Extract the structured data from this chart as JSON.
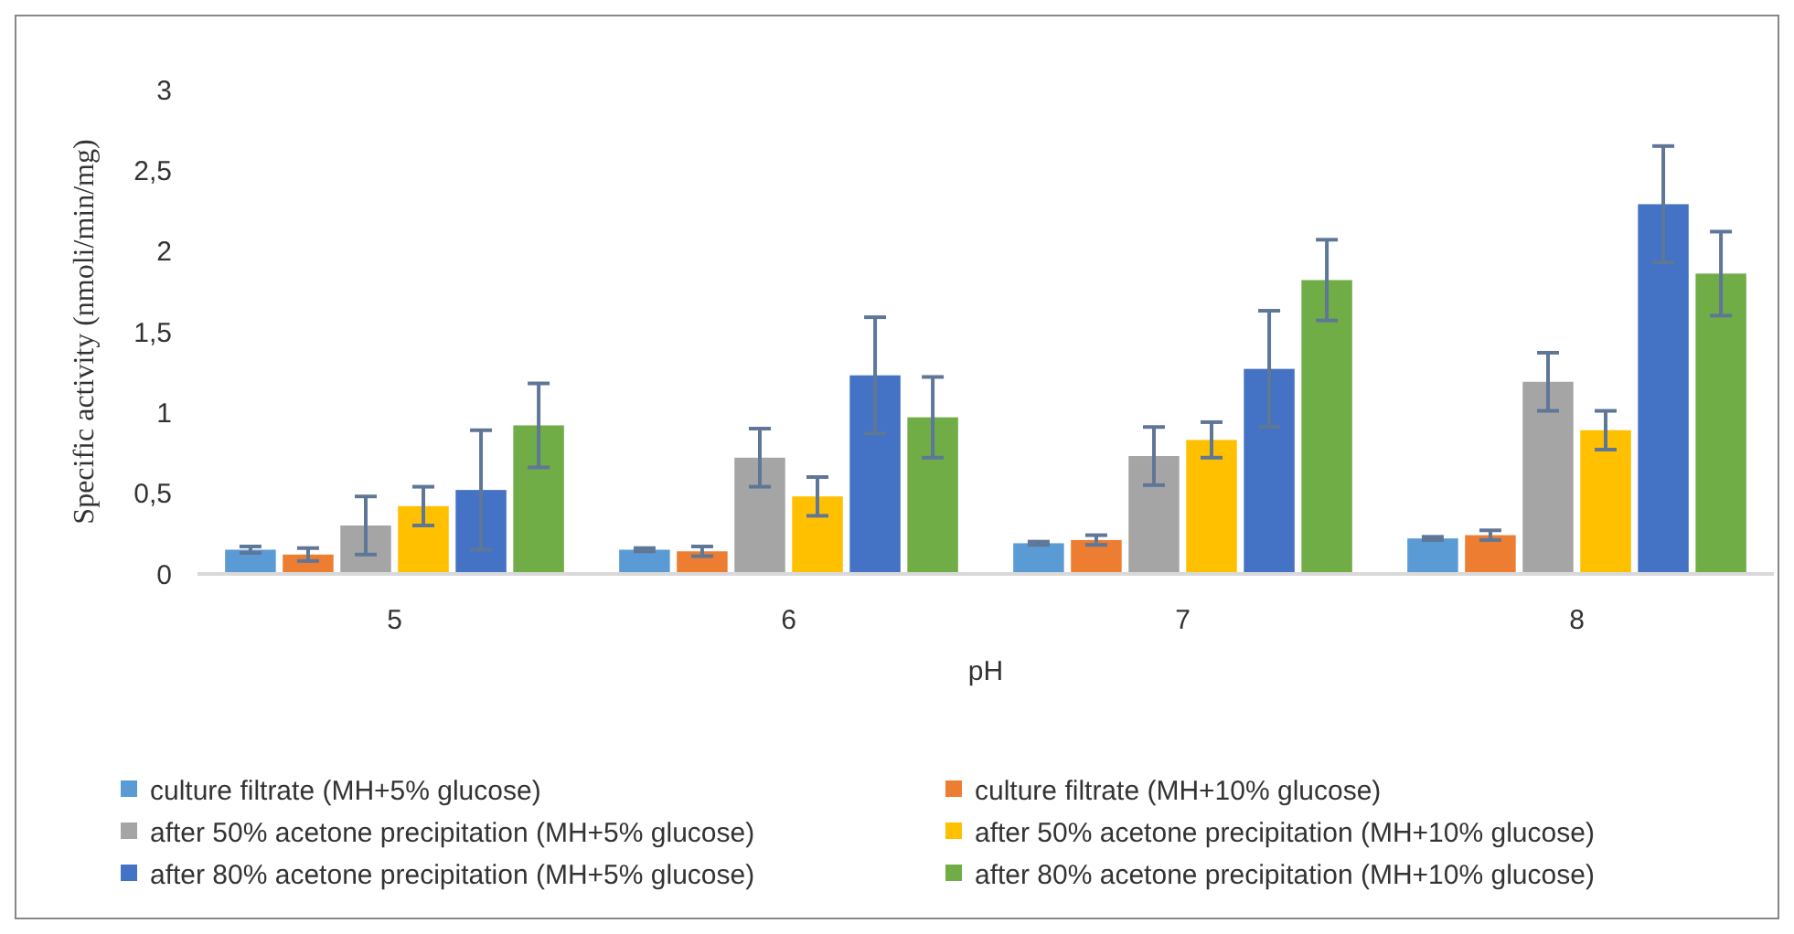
{
  "chart_data": {
    "type": "bar",
    "xlabel": "pH",
    "ylabel": "Specific activity  (nmoli/min/mg)",
    "categories": [
      "5",
      "6",
      "7",
      "8"
    ],
    "series": [
      {
        "name": "culture filtrate (MH+5% glucose)",
        "color": "#5b9bd5",
        "values": [
          0.15,
          0.15,
          0.19,
          0.22
        ],
        "errors": [
          0.02,
          0.01,
          0.01,
          0.01
        ]
      },
      {
        "name": "culture filtrate (MH+10% glucose)",
        "color": "#ed7d31",
        "values": [
          0.12,
          0.14,
          0.21,
          0.24
        ],
        "errors": [
          0.04,
          0.03,
          0.03,
          0.03
        ]
      },
      {
        "name": "after 50% acetone precipitation (MH+5% glucose)",
        "color": "#a5a5a5",
        "values": [
          0.3,
          0.72,
          0.73,
          1.19
        ],
        "errors": [
          0.18,
          0.18,
          0.18,
          0.18
        ]
      },
      {
        "name": "after 50% acetone precipitation (MH+10% glucose)",
        "color": "#ffc000",
        "values": [
          0.42,
          0.48,
          0.83,
          0.89
        ],
        "errors": [
          0.12,
          0.12,
          0.11,
          0.12
        ]
      },
      {
        "name": "after 80% acetone precipitation (MH+5% glucose)",
        "color": "#4472c4",
        "values": [
          0.52,
          1.23,
          1.27,
          2.29
        ],
        "errors": [
          0.37,
          0.36,
          0.36,
          0.36
        ]
      },
      {
        "name": "after 80% acetone precipitation (MH+10% glucose)",
        "color": "#70ad47",
        "values": [
          0.92,
          0.97,
          1.82,
          1.86
        ],
        "errors": [
          0.26,
          0.25,
          0.25,
          0.26
        ]
      }
    ],
    "ylim": [
      0,
      3
    ],
    "yticks": [
      0,
      {
        "value": 0.5,
        "label": "0,5"
      },
      1,
      {
        "value": 1.5,
        "label": "1,5"
      },
      2,
      {
        "value": 2.5,
        "label": "2,5"
      },
      3
    ],
    "grid": false,
    "legend": "bottom"
  }
}
